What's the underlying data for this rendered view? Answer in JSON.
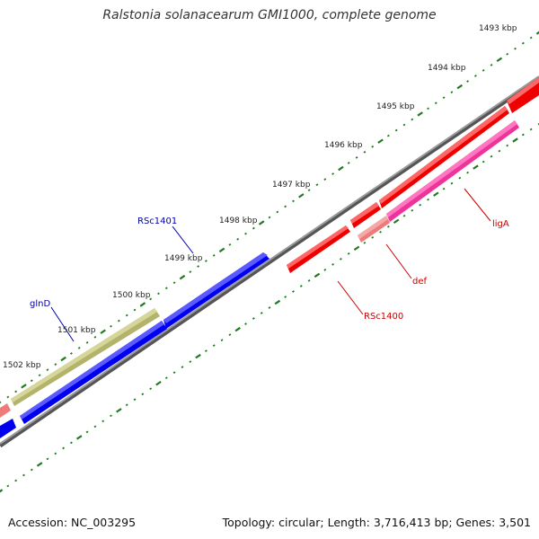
{
  "title": "Ralstonia solanacearum GMI1000, complete genome",
  "footer": {
    "accession": "Accession: NC_003295",
    "summary": "Topology: circular; Length: 3,716,413 bp; Genes: 3,501"
  },
  "ruler": [
    {
      "label": "1493 kbp"
    },
    {
      "label": "1494 kbp"
    },
    {
      "label": "1495 kbp"
    },
    {
      "label": "1496 kbp"
    },
    {
      "label": "1497 kbp"
    },
    {
      "label": "1498 kbp"
    },
    {
      "label": "1499 kbp"
    },
    {
      "label": "1500 kbp"
    },
    {
      "label": "1501 kbp"
    },
    {
      "label": "1502 kbp"
    }
  ],
  "gene_labels": [
    {
      "text": "RSc1401",
      "color": "#0000aa"
    },
    {
      "text": "glnD",
      "color": "#0000aa"
    },
    {
      "text": "ligA",
      "color": "#cc0000"
    },
    {
      "text": "def",
      "color": "#cc0000"
    },
    {
      "text": "RSc1400",
      "color": "#cc0000"
    }
  ],
  "colors": {
    "backbone": "#7a7a7a",
    "forward_cds": "#0000ee",
    "reverse_cds": "#ee0000",
    "gene_olive": "#b3b36b",
    "gene_pink": "#ee3399",
    "gene_salmon": "#ee7a7a",
    "tick": "#1f7a1f"
  }
}
